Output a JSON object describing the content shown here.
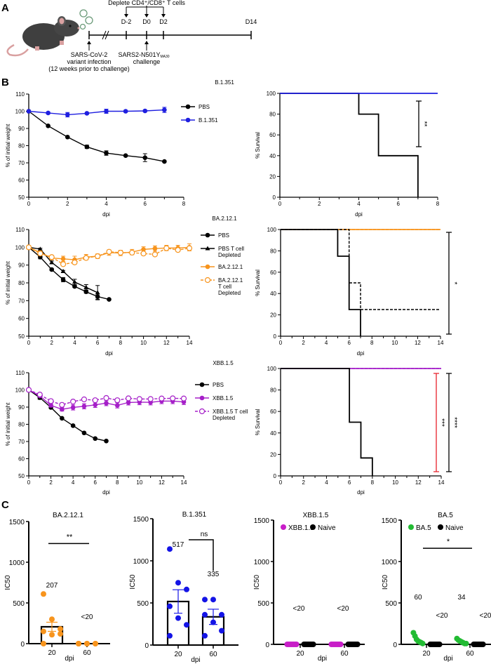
{
  "panels": {
    "a": "A",
    "b": "B",
    "c": "C"
  },
  "timeline": {
    "deplete_label": "Deplete CD4⁺/CD8⁺ T cells",
    "days": [
      "D-2",
      "D0",
      "D2",
      "D14"
    ],
    "infection_lines": [
      "SARS-CoV-2",
      "variant infection",
      "(12 weeks prior to challenge)"
    ],
    "challenge_main": "SARS2-N501Y",
    "challenge_sub": "MA30",
    "challenge_line2": "challenge",
    "icons": [
      "mouse-illustration",
      "virus-icon"
    ]
  },
  "chart_data": [
    {
      "type": "line",
      "title": "B.1.351",
      "xlabel": "dpi",
      "ylabel": "% of initial weight",
      "xlim": [
        0,
        8
      ],
      "ylim": [
        50,
        110
      ],
      "xticks": [
        0,
        2,
        4,
        6,
        8
      ],
      "yticks": [
        50,
        60,
        70,
        80,
        90,
        100,
        110
      ],
      "legend": "right",
      "series": [
        {
          "legend_lines": [
            "PBS"
          ],
          "color": "#000000",
          "marker": "circle",
          "dashed": false,
          "x": [
            0,
            1,
            2,
            3,
            4,
            5,
            6,
            7
          ],
          "y": [
            100,
            91.5,
            85,
            79.3,
            75.7,
            74.2,
            73,
            70.8
          ],
          "err": [
            0,
            0,
            0,
            1,
            1.3,
            0.5,
            2.3,
            0.3
          ]
        },
        {
          "legend_lines": [
            "B.1.351"
          ],
          "color": "#1f1fe0",
          "marker": "circle",
          "dashed": false,
          "x": [
            0,
            1,
            2,
            3,
            4,
            5,
            6,
            7
          ],
          "y": [
            100,
            99,
            98,
            98.8,
            100,
            100,
            100.2,
            100.8
          ],
          "err": [
            0,
            0.5,
            1.3,
            0.5,
            1.2,
            0.5,
            0.5,
            1.5
          ]
        }
      ]
    },
    {
      "type": "survival",
      "title": "",
      "xlabel": "dpi",
      "ylabel": "% Survival",
      "xlim": [
        0,
        8
      ],
      "ylim": [
        0,
        100
      ],
      "xticks": [
        0,
        2,
        4,
        6,
        8
      ],
      "yticks": [
        0,
        20,
        40,
        60,
        80,
        100
      ],
      "series": [
        {
          "color": "#000000",
          "dashed": false,
          "steps": [
            [
              0,
              100
            ],
            [
              4,
              80
            ],
            [
              5,
              40
            ],
            [
              7,
              0
            ]
          ]
        },
        {
          "color": "#1f1fe0",
          "dashed": false,
          "steps": [
            [
              0,
              100
            ],
            [
              8,
              100
            ]
          ]
        }
      ],
      "significance": [
        {
          "label": "**",
          "color": "#000000"
        }
      ]
    },
    {
      "type": "line",
      "title": "BA.2.12.1",
      "xlabel": "dpi",
      "ylabel": "% of initial weight",
      "xlim": [
        0,
        14
      ],
      "ylim": [
        50,
        110
      ],
      "xticks": [
        0,
        2,
        4,
        6,
        8,
        10,
        12,
        14
      ],
      "yticks": [
        50,
        60,
        70,
        80,
        90,
        100,
        110
      ],
      "legend": "right",
      "series": [
        {
          "legend_lines": [
            "PBS"
          ],
          "color": "#000000",
          "marker": "circle",
          "dashed": false,
          "x": [
            0,
            1,
            2,
            3,
            4,
            5,
            6,
            7
          ],
          "y": [
            100,
            94.5,
            87.5,
            81.8,
            78,
            75,
            72.3,
            70.7
          ],
          "err": [
            0,
            1,
            0.5,
            1.2,
            0.6,
            0.8,
            1.5,
            0.3
          ]
        },
        {
          "legend_lines": [
            "PBS T cell",
            "Depleted"
          ],
          "color": "#000000",
          "marker": "triangle",
          "dashed": false,
          "x": [
            0,
            1,
            2,
            3,
            4,
            5,
            6
          ],
          "y": [
            100,
            99,
            91.5,
            86.5,
            80.5,
            77.5,
            74.5
          ],
          "err": [
            0,
            0.5,
            0.8,
            0.5,
            1.5,
            1.5,
            4
          ]
        },
        {
          "legend_lines": [
            "BA.2.12.1"
          ],
          "color": "#f7941d",
          "marker": "circle",
          "dashed": false,
          "x": [
            0,
            1,
            2,
            3,
            4,
            5,
            6,
            7,
            8,
            9,
            10,
            11,
            12,
            13,
            14
          ],
          "y": [
            100,
            97,
            94,
            93.5,
            93,
            94.5,
            95,
            97,
            96.8,
            97.3,
            98.8,
            99.3,
            99.6,
            99.6,
            100
          ],
          "err": [
            0,
            1,
            1,
            1.5,
            2,
            1.5,
            1.3,
            1.5,
            1.5,
            1.5,
            1.5,
            1.5,
            1.5,
            1.5,
            2
          ]
        },
        {
          "legend_lines": [
            "BA.2.12.1",
            "T cell",
            "Depleted"
          ],
          "color": "#f7941d",
          "marker": "open-circle",
          "dashed": true,
          "x": [
            0,
            1,
            2,
            3,
            4,
            5,
            6,
            7,
            8,
            9,
            10,
            11,
            12,
            13,
            14
          ],
          "y": [
            100,
            96.5,
            94.5,
            90.5,
            91.5,
            94,
            95,
            97.5,
            97,
            97,
            96.5,
            96,
            99.5,
            98.5,
            99.5
          ],
          "err": [
            0,
            0.5,
            0.5,
            0.8,
            1,
            1,
            1,
            1,
            1,
            1,
            0.5,
            0.5,
            1,
            1,
            1
          ]
        }
      ]
    },
    {
      "type": "survival",
      "title": "",
      "xlabel": "dpi",
      "ylabel": "% Survival",
      "xlim": [
        0,
        14
      ],
      "ylim": [
        0,
        100
      ],
      "xticks": [
        0,
        2,
        4,
        6,
        8,
        10,
        12,
        14
      ],
      "yticks": [
        0,
        20,
        40,
        60,
        80,
        100
      ],
      "series": [
        {
          "color": "#f7941d",
          "dashed": false,
          "steps": [
            [
              0,
              100
            ],
            [
              14,
              100
            ]
          ]
        },
        {
          "color": "#f7941d",
          "dashed": true,
          "steps": [
            [
              0,
              100
            ],
            [
              14,
              100
            ]
          ]
        },
        {
          "color": "#000000",
          "dashed": false,
          "steps": [
            [
              0,
              100
            ],
            [
              5,
              75
            ],
            [
              6,
              25
            ],
            [
              7,
              0
            ]
          ]
        },
        {
          "color": "#000000",
          "dashed": true,
          "steps": [
            [
              0,
              100
            ],
            [
              6,
              50
            ],
            [
              7,
              25
            ],
            [
              14,
              25
            ]
          ]
        }
      ],
      "significance": [
        {
          "label": "*",
          "color": "#000000"
        }
      ]
    },
    {
      "type": "line",
      "title": "XBB.1.5",
      "xlabel": "dpi",
      "ylabel": "% of initial weight",
      "xlim": [
        0,
        14
      ],
      "ylim": [
        50,
        110
      ],
      "xticks": [
        0,
        2,
        4,
        6,
        8,
        10,
        12,
        14
      ],
      "yticks": [
        50,
        60,
        70,
        80,
        90,
        100,
        110
      ],
      "legend": "right",
      "series": [
        {
          "legend_lines": [
            "PBS"
          ],
          "color": "#000000",
          "marker": "circle",
          "dashed": false,
          "x": [
            0,
            1,
            2,
            3,
            4,
            5,
            6,
            7
          ],
          "y": [
            100,
            95.5,
            89.8,
            83.5,
            79.2,
            75,
            71.7,
            70.3
          ],
          "err": [
            0,
            1,
            0.5,
            0.3,
            0.3,
            0.3,
            0.3,
            0.3
          ]
        },
        {
          "legend_lines": [
            "XBB.1.5"
          ],
          "color": "#a51fc8",
          "marker": "circle",
          "dashed": false,
          "x": [
            0,
            1,
            2,
            3,
            4,
            5,
            6,
            7,
            8,
            9,
            10,
            11,
            12,
            13,
            14
          ],
          "y": [
            100,
            96.5,
            91,
            88.7,
            89.8,
            90.5,
            91.3,
            92.3,
            91,
            92.7,
            92.9,
            92.8,
            93.5,
            93.5,
            93
          ],
          "err": [
            0,
            0.5,
            1,
            1,
            1.5,
            1.5,
            1.5,
            1.5,
            1.5,
            1.5,
            1.5,
            1.5,
            1.5,
            1.5,
            1.5
          ]
        },
        {
          "legend_lines": [
            "XBB.1.5 T cell",
            "Depleted"
          ],
          "color": "#a51fc8",
          "marker": "open-circle",
          "dashed": true,
          "x": [
            0,
            1,
            2,
            3,
            4,
            5,
            6,
            7,
            8,
            9,
            10,
            11,
            12,
            13,
            14
          ],
          "y": [
            100,
            97.3,
            93.5,
            91.3,
            93.2,
            94.5,
            94,
            95.3,
            94,
            95.1,
            94.7,
            94.7,
            95,
            95.1,
            95
          ],
          "err": [
            0,
            0.5,
            0.5,
            1,
            0.8,
            0.8,
            0.8,
            0.8,
            0.8,
            0.5,
            0.5,
            0.5,
            0.5,
            0.5,
            0.5
          ]
        }
      ]
    },
    {
      "type": "survival",
      "title": "",
      "xlabel": "dpi",
      "ylabel": "% Survival",
      "xlim": [
        0,
        14
      ],
      "ylim": [
        0,
        100
      ],
      "xticks": [
        0,
        2,
        4,
        6,
        8,
        10,
        12,
        14
      ],
      "yticks": [
        0,
        20,
        40,
        60,
        80,
        100
      ],
      "series": [
        {
          "color": "#a51fc8",
          "dashed": false,
          "steps": [
            [
              0,
              100
            ],
            [
              14,
              100
            ]
          ]
        },
        {
          "color": "#a51fc8",
          "dashed": true,
          "steps": [
            [
              0,
              100
            ],
            [
              14,
              100
            ]
          ]
        },
        {
          "color": "#000000",
          "dashed": false,
          "steps": [
            [
              0,
              100
            ],
            [
              6,
              50
            ],
            [
              7,
              16.7
            ],
            [
              8,
              0
            ]
          ]
        }
      ],
      "significance": [
        {
          "label": "***",
          "color": "#e8202a"
        },
        {
          "label": "****",
          "color": "#000000"
        }
      ]
    },
    {
      "type": "scatter_bar",
      "title": "BA.2.12.1",
      "xlabel": "dpi",
      "ylabel": "IC50",
      "ylim": [
        0,
        1500
      ],
      "yticks": [
        0,
        500,
        1000,
        1500
      ],
      "categories": [
        "20",
        "60"
      ],
      "series": [
        {
          "color": "#f7941d",
          "bar": true,
          "groups": [
            {
              "points": [
                610,
                300,
                180,
                150,
                110,
                120,
                0
              ],
              "mean": 207,
              "label": "207"
            },
            {
              "points": [
                0,
                0,
                0,
                0,
                0,
                0,
                0
              ],
              "mean": 0,
              "label": "<20"
            }
          ]
        }
      ],
      "significance": [
        {
          "label": "**",
          "level": 1230
        }
      ]
    },
    {
      "type": "scatter_bar",
      "title": "B.1.351",
      "xlabel": "dpi",
      "ylabel": "IC50",
      "ylim": [
        0,
        1500
      ],
      "yticks": [
        0,
        500,
        1000,
        1500
      ],
      "categories": [
        "20",
        "60"
      ],
      "series": [
        {
          "color": "#1414e6",
          "bar": true,
          "groups": [
            {
              "points": [
                1140,
                740,
                660,
                460,
                320,
                240,
                110
              ],
              "mean": 517,
              "label": "517"
            },
            {
              "points": [
                540,
                540,
                360,
                360,
                270,
                170,
                110
              ],
              "mean": 335,
              "label": "335"
            }
          ]
        }
      ],
      "significance": [
        {
          "label": "ns",
          "level": 1250
        }
      ]
    },
    {
      "type": "scatter_bar",
      "title": "XBB.1.5",
      "xlabel": "dpi",
      "ylabel": "IC50",
      "ylim": [
        0,
        1500
      ],
      "yticks": [
        0,
        500,
        1000,
        1500
      ],
      "categories": [
        "20",
        "60"
      ],
      "legend": "top",
      "series": [
        {
          "name": "XBB.1.5",
          "color": "#c81ec8",
          "bar": false,
          "groups": [
            {
              "points": [
                0,
                0,
                0,
                0,
                0,
                0,
                0
              ],
              "label": "<20"
            },
            {
              "points": [
                0,
                0,
                0,
                0,
                0,
                0,
                0
              ],
              "label": "<20"
            }
          ]
        },
        {
          "name": "Naive",
          "color": "#000000",
          "bar": false,
          "groups": [
            {
              "points": [
                0,
                0,
                0,
                0,
                0,
                0,
                0
              ]
            },
            {
              "points": [
                0,
                0,
                0,
                0,
                0,
                0,
                0
              ]
            }
          ]
        }
      ]
    },
    {
      "type": "scatter_bar",
      "title": "BA.5",
      "xlabel": "dpi",
      "ylabel": "IC50",
      "ylim": [
        0,
        1500
      ],
      "yticks": [
        0,
        500,
        1000,
        1500
      ],
      "categories": [
        "20",
        "60"
      ],
      "legend": "top",
      "series": [
        {
          "name": "BA.5",
          "color": "#22bb33",
          "bar": false,
          "groups": [
            {
              "points": [
                140,
                100,
                60,
                40,
                30,
                20,
                10
              ],
              "label": "60"
            },
            {
              "points": [
                70,
                50,
                40,
                30,
                20,
                10,
                10
              ],
              "label": "34"
            }
          ]
        },
        {
          "name": "Naive",
          "color": "#000000",
          "bar": false,
          "groups": [
            {
              "points": [
                0,
                0,
                0,
                0,
                0,
                0,
                0
              ],
              "label": "<20"
            },
            {
              "points": [
                0,
                0,
                0,
                0,
                0,
                0,
                0
              ],
              "label": "<20"
            }
          ]
        }
      ],
      "significance": [
        {
          "label": "*",
          "level": 1160
        }
      ]
    }
  ]
}
